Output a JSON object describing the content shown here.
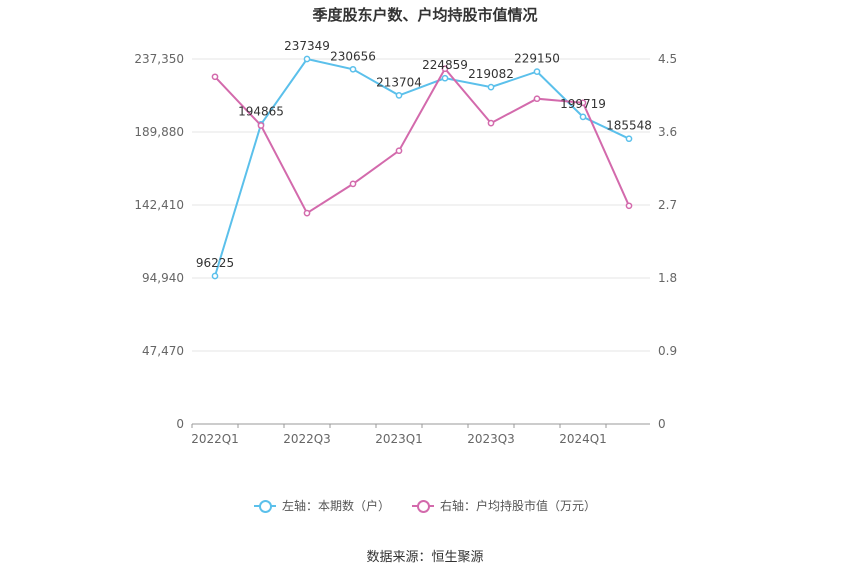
{
  "title": "季度股东户数、户均持股市值情况",
  "source": "数据来源：恒生聚源",
  "colors": {
    "left_series": "#5bc0eb",
    "right_series": "#d36aac",
    "grid": "#e6e6e6",
    "axis_text": "#666666"
  },
  "legend": {
    "left": "左轴：本期数（户）",
    "right": "右轴：户均持股市值（万元）"
  },
  "chart_data": {
    "type": "line",
    "x": [
      "2022Q1",
      "2022Q2",
      "2022Q3",
      "2022Q4",
      "2023Q1",
      "2023Q2",
      "2023Q3",
      "2023Q4",
      "2024Q1",
      "2024Q2"
    ],
    "x_tick_labels": [
      "2022Q1",
      "2022Q3",
      "2023Q1",
      "2023Q3",
      "2024Q1"
    ],
    "y_left": {
      "ticks": [
        "0",
        "47,470",
        "94,940",
        "142,410",
        "189,880",
        "237,350"
      ],
      "range": [
        0,
        237350
      ]
    },
    "y_right": {
      "ticks": [
        "0",
        "0.9",
        "1.8",
        "2.7",
        "3.6",
        "4.5"
      ],
      "range": [
        0,
        4.5
      ]
    },
    "grid": true,
    "legend_position": "bottom",
    "series": [
      {
        "name": "左轴：本期数（户）",
        "axis": "left",
        "values": [
          96225,
          194865,
          237349,
          230656,
          213704,
          224859,
          219082,
          229150,
          199719,
          185548
        ],
        "labels": [
          "96225",
          "194865",
          "237349",
          "230656",
          "213704",
          "224859",
          "219082",
          "229150",
          "199719",
          "185548"
        ]
      },
      {
        "name": "右轴：户均持股市值（万元）",
        "axis": "right",
        "values": [
          4.28,
          3.68,
          2.6,
          2.96,
          3.37,
          4.38,
          3.71,
          4.01,
          3.96,
          2.69
        ]
      }
    ]
  }
}
